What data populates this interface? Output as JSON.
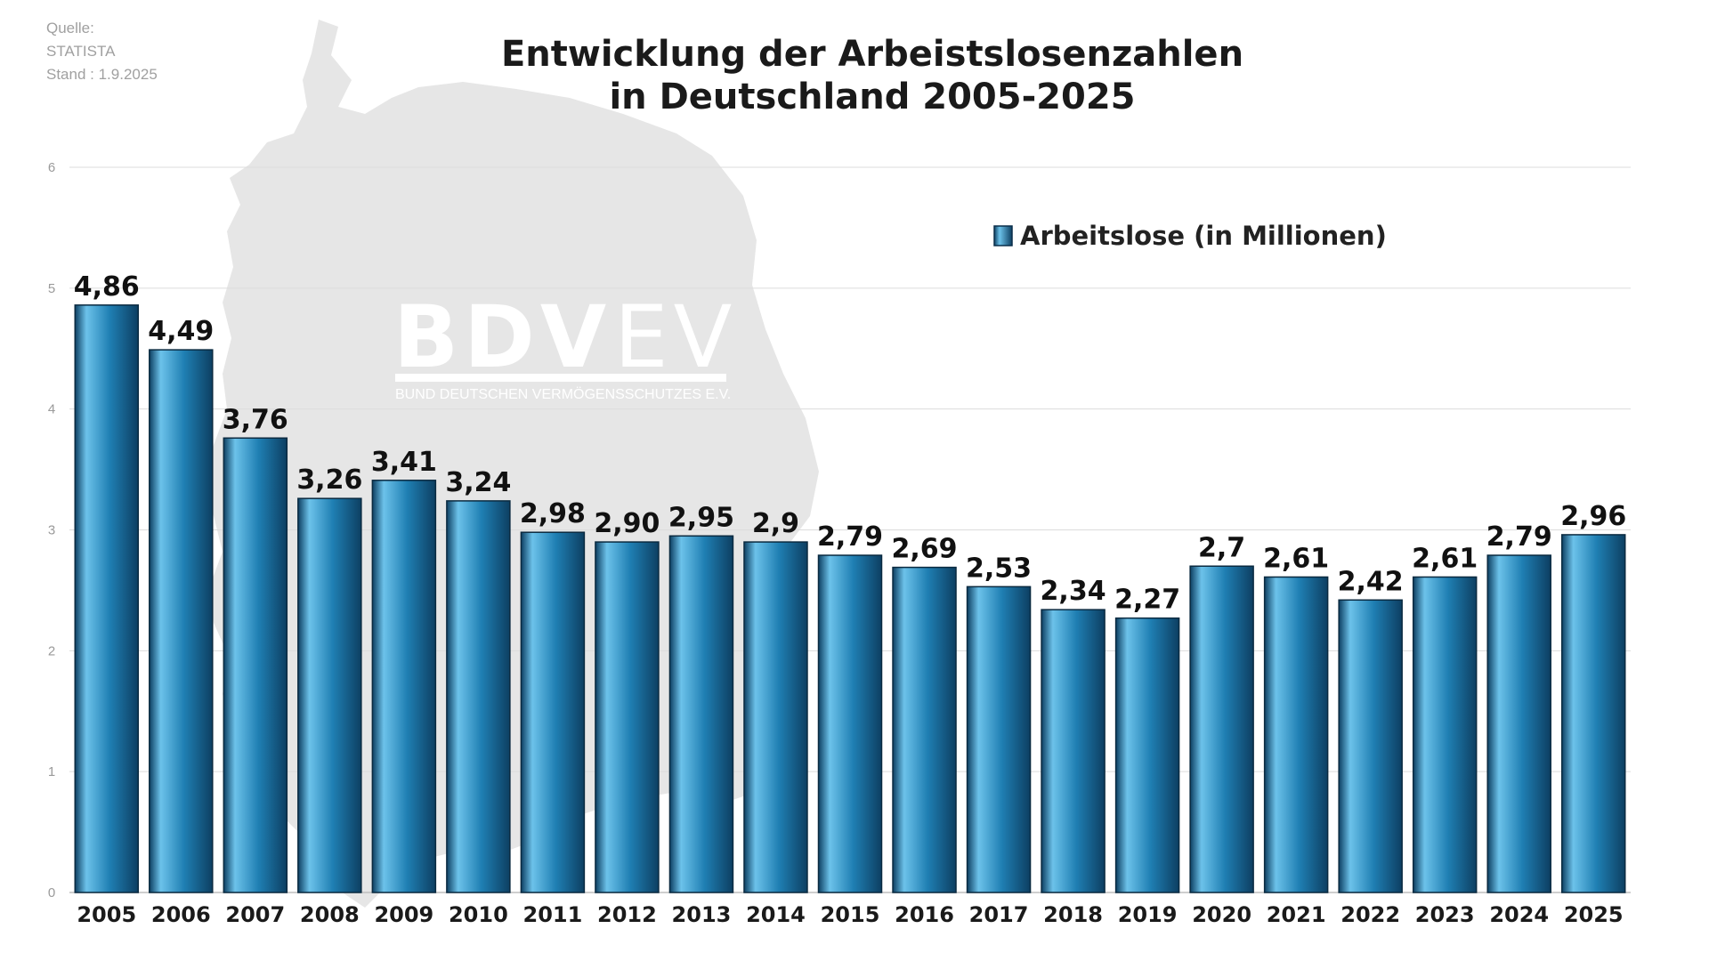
{
  "source": {
    "label": "Quelle:",
    "name": "STATISTA",
    "date": "Stand : 1.9.2025"
  },
  "watermark": {
    "logo_bold": "BDV",
    "logo_light": "EV",
    "subtitle": "BUND DEUTSCHEN VERMÖGENSSCHUTZES E.V."
  },
  "colors": {
    "bar_dark": "#0d3f62",
    "bar_mid": "#1f7fb3",
    "bar_light": "#6cc2ea",
    "grid": "#dcdcdc",
    "map_silhouette": "#e6e6e6"
  },
  "chart_data": {
    "type": "bar",
    "title_lines": [
      "Entwicklung der Arbeistslosenzahlen",
      "in Deutschland 2005-2025"
    ],
    "categories": [
      "2005",
      "2006",
      "2007",
      "2008",
      "2009",
      "2010",
      "2011",
      "2012",
      "2013",
      "2014",
      "2015",
      "2016",
      "2017",
      "2018",
      "2019",
      "2020",
      "2021",
      "2022",
      "2023",
      "2024",
      "2025"
    ],
    "series": [
      {
        "name": "Arbeitslose (in Millionen)",
        "values": [
          4.86,
          4.49,
          3.76,
          3.26,
          3.41,
          3.24,
          2.98,
          2.9,
          2.95,
          2.9,
          2.79,
          2.69,
          2.53,
          2.34,
          2.27,
          2.7,
          2.61,
          2.42,
          2.61,
          2.79,
          2.96
        ],
        "labels": [
          "4,86",
          "4,49",
          "3,76",
          "3,26",
          "3,41",
          "3,24",
          "2,98",
          "2,90",
          "2,95",
          "2,9",
          "2,79",
          "2,69",
          "2,53",
          "2,34",
          "2,27",
          "2,7",
          "2,61",
          "2,42",
          "2,61",
          "2,79",
          "2,96"
        ]
      }
    ],
    "yticks": [
      "0",
      "1",
      "2",
      "3",
      "4",
      "5",
      "6"
    ],
    "ylim": [
      0,
      6
    ],
    "grid": true,
    "legend_position": "top-right"
  }
}
